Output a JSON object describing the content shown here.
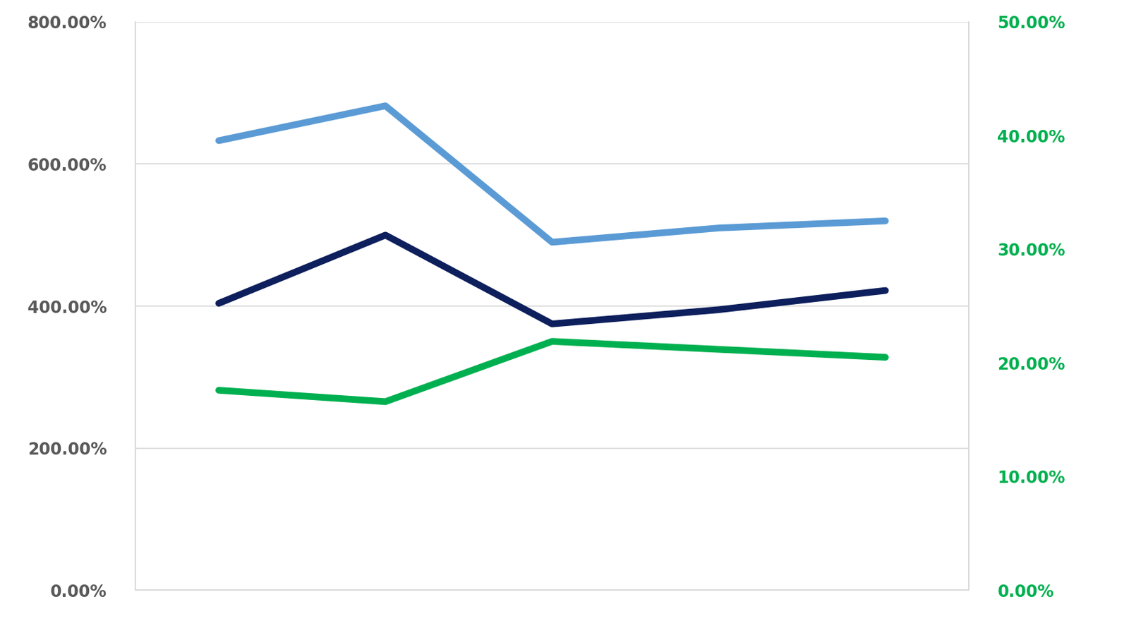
{
  "chart_data": {
    "type": "line",
    "categories": [
      null,
      null,
      null,
      null,
      null
    ],
    "series": [
      {
        "color": "#5b9bd5",
        "values": [
          633,
          682,
          490,
          510,
          520
        ]
      },
      {
        "color": "#0d1f5c",
        "values": [
          404,
          500,
          375,
          395,
          422
        ]
      },
      {
        "color": "#00b050",
        "values": [
          17.6,
          16.6,
          21.9,
          21.2,
          20.5
        ],
        "axis": "y2"
      }
    ],
    "ylim": [
      0,
      800
    ],
    "yticks": [
      {
        "value": 0,
        "label": "0.00%"
      },
      {
        "value": 200,
        "label": "200.00%"
      },
      {
        "value": 400,
        "label": "400.00%"
      },
      {
        "value": 600,
        "label": "600.00%"
      },
      {
        "value": 800,
        "label": "800.00%"
      }
    ],
    "y2lim": [
      0,
      50
    ],
    "y2ticks": [
      {
        "value": 0,
        "label": "0.00%"
      },
      {
        "value": 10,
        "label": "10.00%"
      },
      {
        "value": 20,
        "label": "20.00%"
      },
      {
        "value": 30,
        "label": "30.00%"
      },
      {
        "value": 40,
        "label": "40.00%"
      },
      {
        "value": 50,
        "label": "50.00%"
      }
    ],
    "grid": true
  }
}
